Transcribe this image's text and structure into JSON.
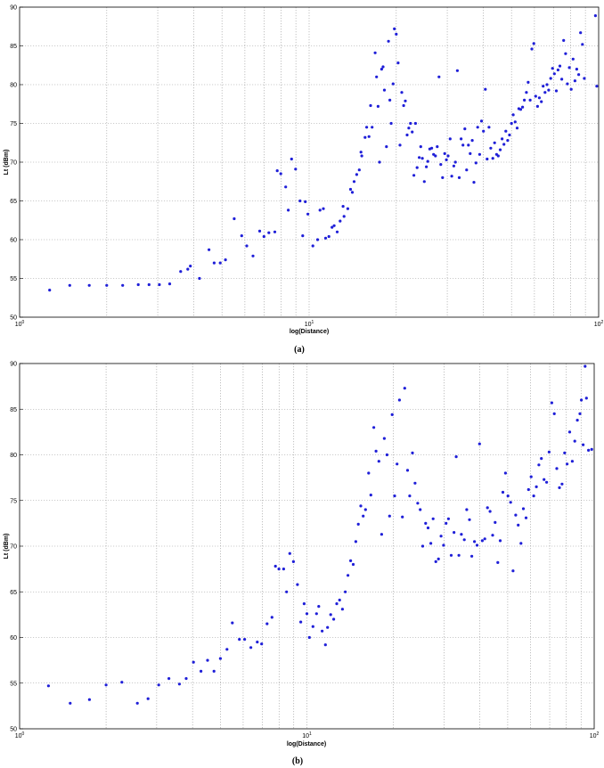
{
  "chart_data": [
    {
      "panel": "a",
      "type": "scatter",
      "caption": "(a)",
      "xlabel": "log(Distance)",
      "ylabel": "Lt (dBm)",
      "x_scale": "log",
      "xlim": [
        1,
        100
      ],
      "ylim": [
        50,
        90
      ],
      "yticks": [
        50,
        55,
        60,
        65,
        70,
        75,
        80,
        85,
        90
      ],
      "xtick_labels": [
        {
          "base": "10",
          "exp": "0"
        },
        {
          "base": "10",
          "exp": "1"
        },
        {
          "base": "10",
          "exp": "2"
        }
      ],
      "grid": true,
      "marker_color": "#1f1fd8",
      "points": [
        [
          1.27,
          53.5
        ],
        [
          1.49,
          54.1
        ],
        [
          1.74,
          54.1
        ],
        [
          2.0,
          54.1
        ],
        [
          2.27,
          54.1
        ],
        [
          2.57,
          54.2
        ],
        [
          2.8,
          54.2
        ],
        [
          3.04,
          54.2
        ],
        [
          3.3,
          54.3
        ],
        [
          3.6,
          55.9
        ],
        [
          3.81,
          56.2
        ],
        [
          3.89,
          56.6
        ],
        [
          4.18,
          55.0
        ],
        [
          4.51,
          58.7
        ],
        [
          4.7,
          57.0
        ],
        [
          4.93,
          57.0
        ],
        [
          5.14,
          57.4
        ],
        [
          5.51,
          62.7
        ],
        [
          5.85,
          60.5
        ],
        [
          6.09,
          59.2
        ],
        [
          6.4,
          57.9
        ],
        [
          6.75,
          61.1
        ],
        [
          6.98,
          60.4
        ],
        [
          7.26,
          60.9
        ],
        [
          7.61,
          61.0
        ],
        [
          7.76,
          68.9
        ],
        [
          7.98,
          68.5
        ],
        [
          8.3,
          66.8
        ],
        [
          8.47,
          63.8
        ],
        [
          8.7,
          70.4
        ],
        [
          8.98,
          69.1
        ],
        [
          9.3,
          65.0
        ],
        [
          9.5,
          60.5
        ],
        [
          9.7,
          64.9
        ],
        [
          9.9,
          63.3
        ],
        [
          10.3,
          59.2
        ],
        [
          10.7,
          60.0
        ],
        [
          10.9,
          63.8
        ],
        [
          11.2,
          64.0
        ],
        [
          11.4,
          60.2
        ],
        [
          11.7,
          60.4
        ],
        [
          12.0,
          61.6
        ],
        [
          12.2,
          61.8
        ],
        [
          12.5,
          61.0
        ],
        [
          12.8,
          62.4
        ],
        [
          13.1,
          64.3
        ],
        [
          13.2,
          63.0
        ],
        [
          13.6,
          64.0
        ],
        [
          13.9,
          66.5
        ],
        [
          14.1,
          66.1
        ],
        [
          14.3,
          67.5
        ],
        [
          14.6,
          68.4
        ],
        [
          14.9,
          69.0
        ],
        [
          15.1,
          71.3
        ],
        [
          15.2,
          70.8
        ],
        [
          15.6,
          73.2
        ],
        [
          15.8,
          74.5
        ],
        [
          16.1,
          73.3
        ],
        [
          16.3,
          77.3
        ],
        [
          16.5,
          74.5
        ],
        [
          16.9,
          84.1
        ],
        [
          17.1,
          81.0
        ],
        [
          17.3,
          77.2
        ],
        [
          17.5,
          70.0
        ],
        [
          17.8,
          82.0
        ],
        [
          18.0,
          82.3
        ],
        [
          18.2,
          79.3
        ],
        [
          18.5,
          72.0
        ],
        [
          18.8,
          85.6
        ],
        [
          19.0,
          78.0
        ],
        [
          19.2,
          75.0
        ],
        [
          19.5,
          80.1
        ],
        [
          19.7,
          87.2
        ],
        [
          20.0,
          86.5
        ],
        [
          20.3,
          82.8
        ],
        [
          20.6,
          72.2
        ],
        [
          20.9,
          79.0
        ],
        [
          21.2,
          77.3
        ],
        [
          21.5,
          77.9
        ],
        [
          21.8,
          73.5
        ],
        [
          22.1,
          74.4
        ],
        [
          22.4,
          75.0
        ],
        [
          22.7,
          73.9
        ],
        [
          23.0,
          68.3
        ],
        [
          23.3,
          75.0
        ],
        [
          23.6,
          69.3
        ],
        [
          24.0,
          70.6
        ],
        [
          24.3,
          72.0
        ],
        [
          24.6,
          70.5
        ],
        [
          25.0,
          67.5
        ],
        [
          25.4,
          69.4
        ],
        [
          25.7,
          70.1
        ],
        [
          26.1,
          71.7
        ],
        [
          26.5,
          71.8
        ],
        [
          26.9,
          71.0
        ],
        [
          27.3,
          70.8
        ],
        [
          27.7,
          72.0
        ],
        [
          28.1,
          81.0
        ],
        [
          28.5,
          69.7
        ],
        [
          28.9,
          68.0
        ],
        [
          29.4,
          71.1
        ],
        [
          29.8,
          70.3
        ],
        [
          30.2,
          70.8
        ],
        [
          30.7,
          73.0
        ],
        [
          31.1,
          68.2
        ],
        [
          31.6,
          69.5
        ],
        [
          32.0,
          70.0
        ],
        [
          32.5,
          81.8
        ],
        [
          33.0,
          68.0
        ],
        [
          33.5,
          73.0
        ],
        [
          34.0,
          72.2
        ],
        [
          34.5,
          74.3
        ],
        [
          35.0,
          69.0
        ],
        [
          35.5,
          72.2
        ],
        [
          36.0,
          71.1
        ],
        [
          36.6,
          72.8
        ],
        [
          37.1,
          67.4
        ],
        [
          37.7,
          69.9
        ],
        [
          38.2,
          74.5
        ],
        [
          38.8,
          71.0
        ],
        [
          39.4,
          75.3
        ],
        [
          40.0,
          74.0
        ],
        [
          40.6,
          79.4
        ],
        [
          41.2,
          70.4
        ],
        [
          41.8,
          74.5
        ],
        [
          42.4,
          71.8
        ],
        [
          43.1,
          70.5
        ],
        [
          43.7,
          72.5
        ],
        [
          44.4,
          71.0
        ],
        [
          45.0,
          70.8
        ],
        [
          45.7,
          71.6
        ],
        [
          46.4,
          73.0
        ],
        [
          47.1,
          72.3
        ],
        [
          47.8,
          74.0
        ],
        [
          48.5,
          72.8
        ],
        [
          49.2,
          73.5
        ],
        [
          50.0,
          75.0
        ],
        [
          50.7,
          76.1
        ],
        [
          51.5,
          75.2
        ],
        [
          52.3,
          74.4
        ],
        [
          53.0,
          76.9
        ],
        [
          53.8,
          76.8
        ],
        [
          54.6,
          77.1
        ],
        [
          55.4,
          78.0
        ],
        [
          56.3,
          79.0
        ],
        [
          57.1,
          80.3
        ],
        [
          58.0,
          78.0
        ],
        [
          58.8,
          84.6
        ],
        [
          59.7,
          85.3
        ],
        [
          60.6,
          78.5
        ],
        [
          61.5,
          77.2
        ],
        [
          62.4,
          78.3
        ],
        [
          63.4,
          77.8
        ],
        [
          64.3,
          79.8
        ],
        [
          65.3,
          79.0
        ],
        [
          66.3,
          80.0
        ],
        [
          67.2,
          79.3
        ],
        [
          68.3,
          80.8
        ],
        [
          69.3,
          82.1
        ],
        [
          70.3,
          81.4
        ],
        [
          71.4,
          79.2
        ],
        [
          72.4,
          81.9
        ],
        [
          73.5,
          82.4
        ],
        [
          74.6,
          80.7
        ],
        [
          75.7,
          85.7
        ],
        [
          76.9,
          84.0
        ],
        [
          78.0,
          80.1
        ],
        [
          79.2,
          82.2
        ],
        [
          80.4,
          79.4
        ],
        [
          81.6,
          83.3
        ],
        [
          82.8,
          80.5
        ],
        [
          84.0,
          82.0
        ],
        [
          85.3,
          81.3
        ],
        [
          86.6,
          86.7
        ],
        [
          87.9,
          85.2
        ],
        [
          89.2,
          80.8
        ],
        [
          97.5,
          88.9
        ],
        [
          98.5,
          79.8
        ]
      ]
    },
    {
      "panel": "b",
      "type": "scatter",
      "caption": "(b)",
      "xlabel": "log(Distance)",
      "ylabel": "Lt (dBm)",
      "x_scale": "log",
      "xlim": [
        1,
        100
      ],
      "ylim": [
        50,
        90
      ],
      "yticks": [
        50,
        55,
        60,
        65,
        70,
        75,
        80,
        85,
        90
      ],
      "xtick_labels": [
        {
          "base": "10",
          "exp": "0"
        },
        {
          "base": "10",
          "exp": "1"
        },
        {
          "base": "10",
          "exp": "2"
        }
      ],
      "grid": true,
      "marker_color": "#1f1fd8",
      "points": [
        [
          1.26,
          54.7
        ],
        [
          1.5,
          52.8
        ],
        [
          1.75,
          53.2
        ],
        [
          2.0,
          54.8
        ],
        [
          2.27,
          55.1
        ],
        [
          2.57,
          52.8
        ],
        [
          2.8,
          53.3
        ],
        [
          3.05,
          54.8
        ],
        [
          3.31,
          55.5
        ],
        [
          3.6,
          54.9
        ],
        [
          3.8,
          55.5
        ],
        [
          4.03,
          57.3
        ],
        [
          4.28,
          56.3
        ],
        [
          4.51,
          57.5
        ],
        [
          4.75,
          56.3
        ],
        [
          5.0,
          57.7
        ],
        [
          5.27,
          58.7
        ],
        [
          5.5,
          61.6
        ],
        [
          5.82,
          59.8
        ],
        [
          6.07,
          59.8
        ],
        [
          6.38,
          58.9
        ],
        [
          6.72,
          59.5
        ],
        [
          6.96,
          59.3
        ],
        [
          7.27,
          61.5
        ],
        [
          7.56,
          62.2
        ],
        [
          7.77,
          67.8
        ],
        [
          7.99,
          67.5
        ],
        [
          8.3,
          67.5
        ],
        [
          8.5,
          65.0
        ],
        [
          8.72,
          69.2
        ],
        [
          8.98,
          68.3
        ],
        [
          9.27,
          65.8
        ],
        [
          9.52,
          61.7
        ],
        [
          9.78,
          63.7
        ],
        [
          10.0,
          62.6
        ],
        [
          10.2,
          60.0
        ],
        [
          10.5,
          61.2
        ],
        [
          10.8,
          62.6
        ],
        [
          11.0,
          63.4
        ],
        [
          11.3,
          60.7
        ],
        [
          11.6,
          59.2
        ],
        [
          11.8,
          61.1
        ],
        [
          12.1,
          62.5
        ],
        [
          12.4,
          62.0
        ],
        [
          12.7,
          63.7
        ],
        [
          13.0,
          64.1
        ],
        [
          13.3,
          63.1
        ],
        [
          13.6,
          65.0
        ],
        [
          13.9,
          66.8
        ],
        [
          14.2,
          68.4
        ],
        [
          14.5,
          68.0
        ],
        [
          14.8,
          70.5
        ],
        [
          15.1,
          72.4
        ],
        [
          15.4,
          74.4
        ],
        [
          15.7,
          73.3
        ],
        [
          16.0,
          74.0
        ],
        [
          16.4,
          78.0
        ],
        [
          16.7,
          75.6
        ],
        [
          17.1,
          83.0
        ],
        [
          17.4,
          80.4
        ],
        [
          17.8,
          79.3
        ],
        [
          18.2,
          71.3
        ],
        [
          18.6,
          81.8
        ],
        [
          19.0,
          80.0
        ],
        [
          19.4,
          73.3
        ],
        [
          19.8,
          84.4
        ],
        [
          20.2,
          75.5
        ],
        [
          20.6,
          79.0
        ],
        [
          21.0,
          86.0
        ],
        [
          21.5,
          73.2
        ],
        [
          21.9,
          87.3
        ],
        [
          22.4,
          78.3
        ],
        [
          22.8,
          75.5
        ],
        [
          23.3,
          80.2
        ],
        [
          23.8,
          76.9
        ],
        [
          24.3,
          74.7
        ],
        [
          24.8,
          74.0
        ],
        [
          25.3,
          70.0
        ],
        [
          25.9,
          72.5
        ],
        [
          26.4,
          72.0
        ],
        [
          27.0,
          70.3
        ],
        [
          27.5,
          73.0
        ],
        [
          28.1,
          68.3
        ],
        [
          28.7,
          68.6
        ],
        [
          29.3,
          71.1
        ],
        [
          29.9,
          70.1
        ],
        [
          30.5,
          72.5
        ],
        [
          31.1,
          73.0
        ],
        [
          31.8,
          69.0
        ],
        [
          32.5,
          71.5
        ],
        [
          33.1,
          79.8
        ],
        [
          33.8,
          69.0
        ],
        [
          34.5,
          71.3
        ],
        [
          35.3,
          70.7
        ],
        [
          36.0,
          74.0
        ],
        [
          36.8,
          72.9
        ],
        [
          37.5,
          68.9
        ],
        [
          38.3,
          70.5
        ],
        [
          39.1,
          70.1
        ],
        [
          39.9,
          81.2
        ],
        [
          40.8,
          70.6
        ],
        [
          41.6,
          70.8
        ],
        [
          42.5,
          74.2
        ],
        [
          43.4,
          73.8
        ],
        [
          44.3,
          71.2
        ],
        [
          45.2,
          72.6
        ],
        [
          46.2,
          68.2
        ],
        [
          47.1,
          70.6
        ],
        [
          48.1,
          75.9
        ],
        [
          49.1,
          78.0
        ],
        [
          50.1,
          75.5
        ],
        [
          51.2,
          74.8
        ],
        [
          52.2,
          67.3
        ],
        [
          53.3,
          73.4
        ],
        [
          54.4,
          72.3
        ],
        [
          55.6,
          70.3
        ],
        [
          56.7,
          74.1
        ],
        [
          57.9,
          73.1
        ],
        [
          59.1,
          76.2
        ],
        [
          60.3,
          77.6
        ],
        [
          61.6,
          75.5
        ],
        [
          62.9,
          76.5
        ],
        [
          64.2,
          78.9
        ],
        [
          65.5,
          79.6
        ],
        [
          66.9,
          77.3
        ],
        [
          68.3,
          77.0
        ],
        [
          69.7,
          80.3
        ],
        [
          71.2,
          85.7
        ],
        [
          72.6,
          84.5
        ],
        [
          74.1,
          78.5
        ],
        [
          75.7,
          76.4
        ],
        [
          77.3,
          76.8
        ],
        [
          78.9,
          80.2
        ],
        [
          80.5,
          79.0
        ],
        [
          82.2,
          82.5
        ],
        [
          83.9,
          79.3
        ],
        [
          85.6,
          81.5
        ],
        [
          87.4,
          83.8
        ],
        [
          89.2,
          84.5
        ],
        [
          90.2,
          86.0
        ],
        [
          91.5,
          81.1
        ],
        [
          93.0,
          89.7
        ],
        [
          94.0,
          86.2
        ],
        [
          95.5,
          80.5
        ],
        [
          98.0,
          80.6
        ]
      ]
    }
  ]
}
